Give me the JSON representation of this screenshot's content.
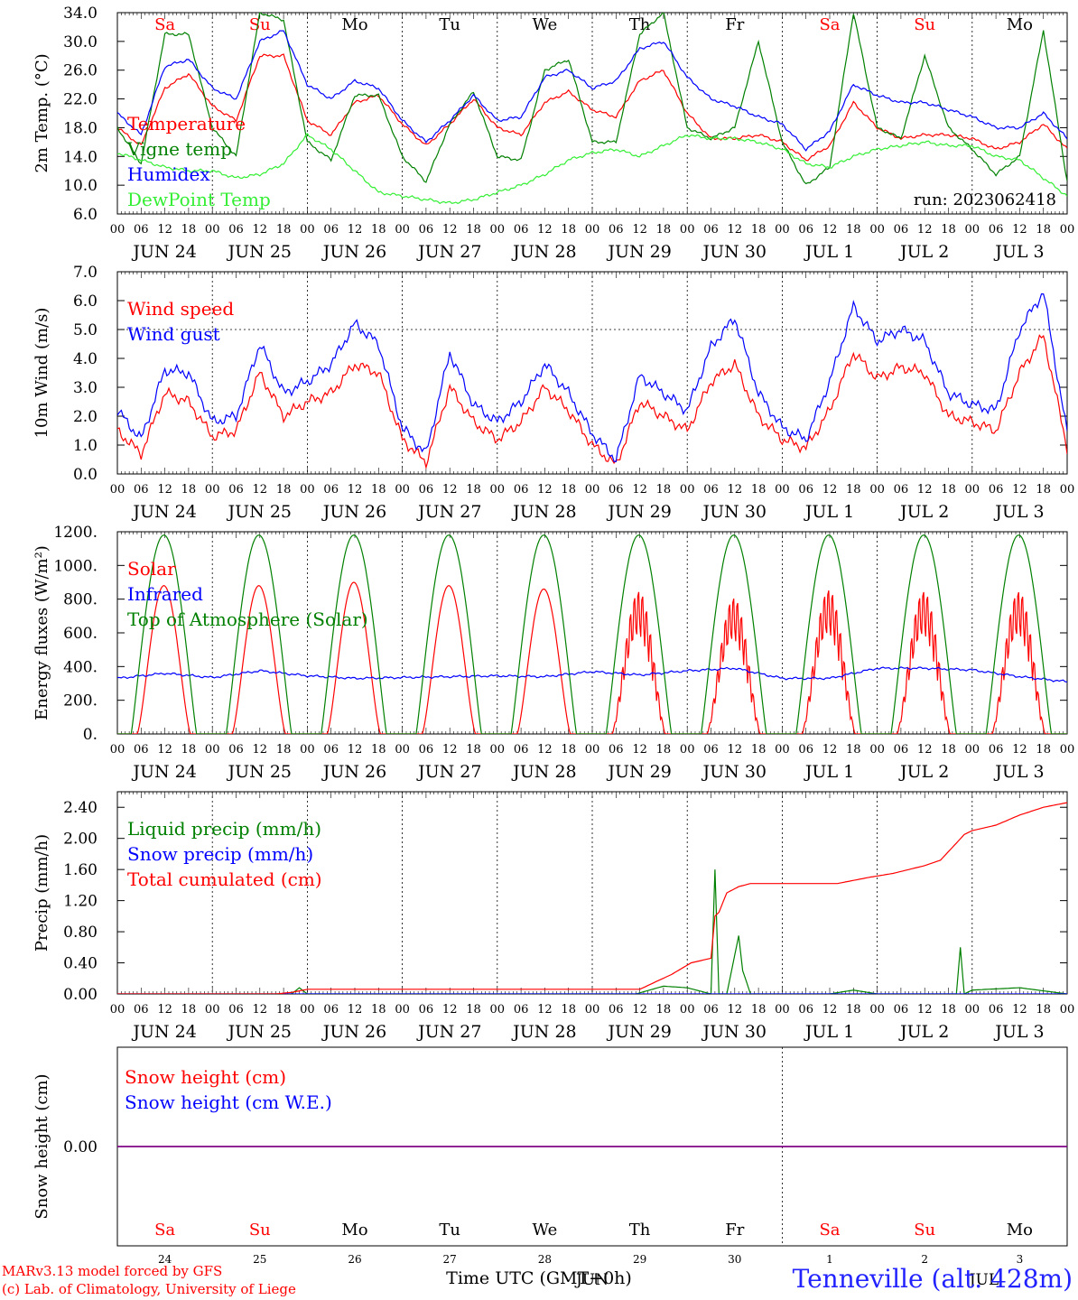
{
  "footer": {
    "credit_line1": "MARv3.13 model forced by GFS",
    "credit_line2": "(c) Lab. of Climatology, University of Liege",
    "station": "Tenneville (alt. 428m)",
    "time_axis_caption": "Time UTC (GMT+0h)"
  },
  "chart_data": [
    {
      "id": "temperature",
      "type": "line",
      "ylabel": "2m Temp. (°C)",
      "ylim": [
        6.0,
        34.0
      ],
      "yticks": [
        6.0,
        10.0,
        14.0,
        18.0,
        22.0,
        26.0,
        30.0,
        34.0
      ],
      "tick_decimals": 1,
      "hour_labels": [
        "00",
        "06",
        "12",
        "18"
      ],
      "day_labels": [
        "JUN 24",
        "JUN 25",
        "JUN 26",
        "JUN 27",
        "JUN 28",
        "JUN 29",
        "JUN 30",
        "JUL  1",
        "JUL  2",
        "JUL  3"
      ],
      "weekdays": [
        "Sa",
        "Su",
        "Mo",
        "Tu",
        "We",
        "Th",
        "Fr",
        "Sa",
        "Su",
        "Mo"
      ],
      "weekday_colors": [
        "#ff0000",
        "#ff0000",
        "#000000",
        "#000000",
        "#000000",
        "#000000",
        "#000000",
        "#ff0000",
        "#ff0000",
        "#000000"
      ],
      "annotation": "run: 2023062418",
      "x_unit": "hours since JUN 24 00 UTC",
      "series": [
        {
          "name": "Temperature",
          "color": "#ff0000",
          "x": [
            0,
            6,
            12,
            18,
            24,
            30,
            36,
            42,
            48,
            54,
            60,
            66,
            72,
            78,
            84,
            90,
            96,
            102,
            108,
            114,
            120,
            126,
            132,
            138,
            144,
            150,
            156,
            162,
            168,
            174,
            180,
            186,
            192,
            198,
            204,
            210,
            216,
            222,
            228,
            234,
            240
          ],
          "y": [
            18.0,
            15.5,
            23.5,
            25.5,
            21.0,
            19.0,
            28.0,
            28.0,
            19.0,
            17.0,
            21.5,
            22.5,
            18.5,
            15.5,
            18.5,
            22.0,
            18.0,
            17.0,
            21.5,
            23.0,
            20.5,
            19.5,
            24.5,
            26.0,
            20.0,
            16.5,
            16.5,
            17.0,
            16.0,
            13.5,
            15.5,
            21.5,
            18.0,
            16.5,
            17.0,
            17.0,
            16.5,
            15.0,
            16.0,
            18.5,
            15.0
          ]
        },
        {
          "name": "Vigne temp",
          "color": "#008000",
          "x": [
            0,
            6,
            12,
            18,
            24,
            30,
            36,
            42,
            48,
            54,
            60,
            66,
            72,
            78,
            84,
            90,
            96,
            102,
            108,
            114,
            120,
            126,
            132,
            138,
            144,
            150,
            156,
            162,
            168,
            174,
            180,
            186,
            192,
            198,
            204,
            210,
            216,
            222,
            228,
            234,
            240
          ],
          "y": [
            18.0,
            13.0,
            31.0,
            31.0,
            18.0,
            14.0,
            34.0,
            33.0,
            16.0,
            13.5,
            22.5,
            22.5,
            14.0,
            10.5,
            18.5,
            23.0,
            14.0,
            13.5,
            26.0,
            27.5,
            16.0,
            16.0,
            31.0,
            34.0,
            18.0,
            16.5,
            18.0,
            30.0,
            16.0,
            10.0,
            12.5,
            34.0,
            18.0,
            16.5,
            28.0,
            18.0,
            15.0,
            11.5,
            14.0,
            31.5,
            10.5
          ]
        },
        {
          "name": "Humidex",
          "color": "#0000ff",
          "x": [
            0,
            6,
            12,
            18,
            24,
            30,
            36,
            42,
            48,
            54,
            60,
            66,
            72,
            78,
            84,
            90,
            96,
            102,
            108,
            114,
            120,
            126,
            132,
            138,
            144,
            150,
            156,
            162,
            168,
            174,
            180,
            186,
            192,
            198,
            204,
            210,
            216,
            222,
            228,
            234,
            240
          ],
          "y": [
            20.0,
            17.0,
            26.5,
            27.5,
            23.5,
            22.0,
            30.0,
            31.5,
            24.0,
            22.0,
            24.5,
            23.5,
            19.0,
            16.0,
            19.0,
            22.5,
            19.0,
            19.5,
            25.0,
            26.0,
            23.5,
            24.5,
            29.0,
            30.0,
            25.0,
            22.0,
            21.0,
            19.5,
            18.5,
            15.0,
            17.5,
            24.0,
            22.5,
            21.5,
            21.5,
            20.5,
            19.5,
            18.0,
            18.0,
            20.0,
            16.5
          ]
        },
        {
          "name": "DewPoint Temp",
          "color": "#33ee33",
          "x": [
            0,
            6,
            12,
            18,
            24,
            30,
            36,
            42,
            48,
            54,
            60,
            66,
            72,
            78,
            84,
            90,
            96,
            102,
            108,
            114,
            120,
            126,
            132,
            138,
            144,
            150,
            156,
            162,
            168,
            174,
            180,
            186,
            192,
            198,
            204,
            210,
            216,
            222,
            228,
            234,
            240
          ],
          "y": [
            14.5,
            13.5,
            12.5,
            12.0,
            12.0,
            11.0,
            11.5,
            13.0,
            17.0,
            15.0,
            12.0,
            9.0,
            8.5,
            8.0,
            7.5,
            8.0,
            9.0,
            10.0,
            11.5,
            13.5,
            14.5,
            15.0,
            14.0,
            15.5,
            17.0,
            16.5,
            16.5,
            16.0,
            15.0,
            13.0,
            12.5,
            14.0,
            15.0,
            15.5,
            16.0,
            15.5,
            15.5,
            14.0,
            13.5,
            11.0,
            8.5
          ]
        }
      ]
    },
    {
      "id": "wind",
      "type": "line",
      "ylabel": "10m Wind (m/s)",
      "ylim": [
        0.0,
        7.0
      ],
      "yticks": [
        0.0,
        1.0,
        2.0,
        3.0,
        4.0,
        5.0,
        6.0,
        7.0
      ],
      "tick_decimals": 1,
      "hline": 5.0,
      "hour_labels": [
        "00",
        "06",
        "12",
        "18"
      ],
      "day_labels": [
        "JUN 24",
        "JUN 25",
        "JUN 26",
        "JUN 27",
        "JUN 28",
        "JUN 29",
        "JUN 30",
        "JUL  1",
        "JUL  2",
        "JUL  3"
      ],
      "x_unit": "hours since JUN 24 00 UTC",
      "series": [
        {
          "name": "Wind speed",
          "color": "#ff0000",
          "x": [
            0,
            6,
            12,
            18,
            24,
            30,
            36,
            42,
            48,
            54,
            60,
            66,
            72,
            78,
            84,
            90,
            96,
            102,
            108,
            114,
            120,
            126,
            132,
            138,
            144,
            150,
            156,
            162,
            168,
            174,
            180,
            186,
            192,
            198,
            204,
            210,
            216,
            222,
            228,
            234,
            240
          ],
          "y": [
            1.5,
            0.7,
            2.8,
            2.5,
            1.3,
            1.5,
            3.5,
            2.0,
            2.5,
            2.8,
            3.8,
            3.5,
            1.2,
            0.4,
            3.0,
            1.8,
            1.2,
            1.8,
            3.0,
            2.2,
            1.0,
            0.3,
            2.5,
            2.0,
            1.5,
            3.2,
            3.8,
            2.0,
            1.2,
            0.9,
            2.2,
            4.2,
            3.3,
            3.7,
            3.5,
            2.0,
            1.8,
            1.5,
            3.5,
            4.8,
            0.9
          ]
        },
        {
          "name": "Wind gust",
          "color": "#0000ff",
          "x": [
            0,
            6,
            12,
            18,
            24,
            30,
            36,
            42,
            48,
            54,
            60,
            66,
            72,
            78,
            84,
            90,
            96,
            102,
            108,
            114,
            120,
            126,
            132,
            138,
            144,
            150,
            156,
            162,
            168,
            174,
            180,
            186,
            192,
            198,
            204,
            210,
            216,
            222,
            228,
            234,
            240
          ],
          "y": [
            2.2,
            1.2,
            3.6,
            3.5,
            1.8,
            2.0,
            4.5,
            2.8,
            3.2,
            3.8,
            5.2,
            4.5,
            1.6,
            0.7,
            4.2,
            2.4,
            1.8,
            2.5,
            3.8,
            2.8,
            1.4,
            0.5,
            3.4,
            2.8,
            2.2,
            4.4,
            5.4,
            2.8,
            1.6,
            1.2,
            3.2,
            5.8,
            4.6,
            5.0,
            4.6,
            2.8,
            2.4,
            2.2,
            5.0,
            6.3,
            1.4
          ]
        }
      ]
    },
    {
      "id": "energy",
      "type": "line",
      "ylabel": "Energy fluxes (W/m²)",
      "ylim": [
        0,
        1200
      ],
      "yticks": [
        0,
        200,
        400,
        600,
        800,
        1000,
        1200
      ],
      "tick_decimals": 0,
      "tick_suffix": ".",
      "hour_labels": [
        "00",
        "06",
        "12",
        "18"
      ],
      "day_labels": [
        "JUN 24",
        "JUN 25",
        "JUN 26",
        "JUN 27",
        "JUN 28",
        "JUN 29",
        "JUN 30",
        "JUL  1",
        "JUL  2",
        "JUL  3"
      ],
      "x_unit": "hours since JUN 24 00 UTC",
      "diurnal": {
        "sunrise_hour": 3.5,
        "sunset_hour": 20.0,
        "noon_hour": 11.75
      },
      "series": [
        {
          "name": "Solar",
          "color": "#ff0000",
          "daily_peaks": [
            880,
            880,
            900,
            880,
            860,
            860,
            820,
            870,
            860,
            860
          ]
        },
        {
          "name": "Infrared",
          "color": "#0000ff",
          "x": [
            0,
            12,
            24,
            36,
            48,
            60,
            72,
            84,
            96,
            108,
            120,
            132,
            144,
            156,
            168,
            180,
            192,
            204,
            216,
            228,
            240
          ],
          "y": [
            330,
            360,
            335,
            375,
            345,
            330,
            335,
            340,
            345,
            340,
            370,
            350,
            375,
            390,
            330,
            330,
            390,
            390,
            380,
            340,
            310
          ]
        },
        {
          "name": "Top of Atmosphere (Solar)",
          "color": "#008000",
          "daily_peaks": [
            1180,
            1180,
            1180,
            1180,
            1180,
            1180,
            1180,
            1180,
            1180,
            1180
          ]
        }
      ]
    },
    {
      "id": "precip",
      "type": "line",
      "ylabel": "Precip (mm/h)",
      "ylim": [
        0.0,
        2.6
      ],
      "yticks": [
        0.0,
        0.4,
        0.8,
        1.2,
        1.6,
        2.0,
        2.4
      ],
      "tick_decimals": 2,
      "hour_labels": [
        "00",
        "06",
        "12",
        "18"
      ],
      "day_labels": [
        "JUN 24",
        "JUN 25",
        "JUN 26",
        "JUN 27",
        "JUN 28",
        "JUN 29",
        "JUN 30",
        "JUL  1",
        "JUL  2",
        "JUL  3"
      ],
      "x_unit": "hours since JUN 24 00 UTC",
      "series": [
        {
          "name": "Liquid precip (mm/h)",
          "color": "#008000",
          "x": [
            0,
            44,
            46,
            48,
            131,
            138,
            144,
            150,
            151,
            152,
            154,
            157,
            158,
            160,
            168,
            180,
            186,
            192,
            212,
            213,
            214,
            216,
            228,
            240
          ],
          "y": [
            0,
            0.0,
            0.08,
            0.0,
            0.0,
            0.1,
            0.08,
            0.0,
            1.6,
            0.0,
            0.0,
            0.75,
            0.3,
            0.0,
            0.0,
            0.0,
            0.05,
            0.0,
            0.0,
            0.6,
            0.0,
            0.05,
            0.08,
            0.0
          ]
        },
        {
          "name": "Snow precip (mm/h)",
          "color": "#0000ff",
          "x": [
            0,
            240
          ],
          "y": [
            0,
            0
          ]
        },
        {
          "name": "Total cumulated (cm)",
          "color": "#ff0000",
          "x": [
            0,
            40,
            44,
            48,
            132,
            140,
            145,
            150,
            151,
            152,
            154,
            157,
            160,
            172,
            182,
            190,
            196,
            204,
            208,
            214,
            216,
            222,
            228,
            234,
            240
          ],
          "y": [
            0,
            0,
            0.02,
            0.06,
            0.06,
            0.25,
            0.4,
            0.46,
            1.0,
            1.05,
            1.3,
            1.38,
            1.42,
            1.42,
            1.42,
            1.5,
            1.55,
            1.65,
            1.72,
            2.05,
            2.1,
            2.17,
            2.3,
            2.4,
            2.46
          ]
        }
      ]
    },
    {
      "id": "snow",
      "type": "line",
      "ylabel": "Snow height (cm)",
      "ylim": [
        -1,
        1
      ],
      "yticks": [
        0.0
      ],
      "tick_decimals": 2,
      "weekdays": [
        "Sa",
        "Su",
        "Mo",
        "Tu",
        "We",
        "Th",
        "Fr",
        "Sa",
        "Su",
        "Mo"
      ],
      "weekday_colors": [
        "#ff0000",
        "#ff0000",
        "#000000",
        "#000000",
        "#000000",
        "#000000",
        "#000000",
        "#ff0000",
        "#ff0000",
        "#000000"
      ],
      "day_numbers": [
        "24",
        "25",
        "26",
        "27",
        "28",
        "29",
        "30",
        "1",
        "2",
        "3"
      ],
      "month_labels": [
        "JUN",
        "JUL"
      ],
      "series": [
        {
          "name": "Snow height (cm)",
          "color": "#ff0000",
          "x": [
            0,
            240
          ],
          "y": [
            0,
            0
          ]
        },
        {
          "name": "Snow height (cm W.E.)",
          "color": "#0000ff",
          "x": [
            0,
            240
          ],
          "y": [
            0,
            0
          ]
        }
      ]
    }
  ]
}
